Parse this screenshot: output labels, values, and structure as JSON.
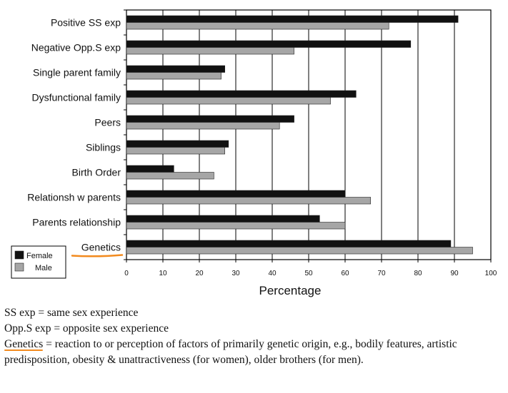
{
  "colors": {
    "female": "#111111",
    "male": "#a6a6a6",
    "highlight": "#f28a1e",
    "grid": "#000000"
  },
  "chart_data": {
    "type": "bar",
    "orientation": "horizontal",
    "categories": [
      "Positive SS exp",
      "Negative Opp.S exp",
      "Single parent family",
      "Dysfunctional family",
      "Peers",
      "Siblings",
      "Birth Order",
      "Relationsh w parents",
      "Parents relationship",
      "Genetics"
    ],
    "series": [
      {
        "name": "Female",
        "values": [
          91,
          78,
          27,
          63,
          46,
          28,
          13,
          60,
          53,
          89
        ]
      },
      {
        "name": "Male",
        "values": [
          72,
          46,
          26,
          56,
          42,
          27,
          24,
          67,
          60,
          95
        ]
      }
    ],
    "xlabel": "Percentage",
    "ylabel": "",
    "xlim": [
      0,
      100
    ],
    "xticks": [
      0,
      10,
      20,
      30,
      40,
      50,
      60,
      70,
      80,
      90,
      100
    ],
    "grid": "vertical",
    "legend": "bottom-left",
    "highlighted_category": "Genetics"
  },
  "notes": [
    {
      "term": "",
      "text": "SS exp = same sex experience"
    },
    {
      "term": "",
      "text": "Opp.S exp = opposite sex experience"
    },
    {
      "term": "Genetics",
      "text": " = reaction to or perception of factors of primarily genetic origin, e.g., bodily features, artistic predisposition, obesity & unattractiveness (for women), older brothers (for men)."
    }
  ]
}
